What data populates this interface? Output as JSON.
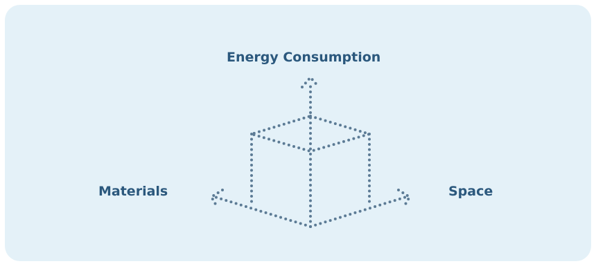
{
  "diagram": {
    "axes": {
      "top": "Energy Consumption",
      "left": "Materials",
      "right": "Space"
    },
    "colors": {
      "panel_background": "#e4f1f8",
      "label_text": "#2b587d",
      "dotted_lines": "#5c7b95"
    },
    "style": "dotted isometric cube with three axis arrows"
  }
}
